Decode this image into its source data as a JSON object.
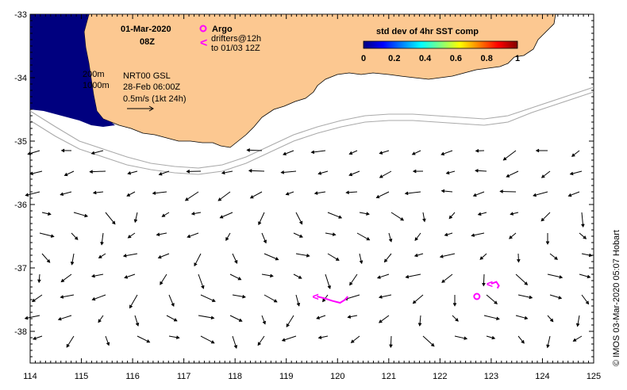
{
  "header": {
    "date": "01-Mar-2020",
    "time": "08Z",
    "argo_label": "Argo",
    "drifters_label": "drifters@12h",
    "drifters_to": "to 01/03 12Z"
  },
  "info": {
    "depth_200": "200m",
    "depth_1000": "1000m",
    "source": "NRT00 GSL",
    "source_time": "28-Feb 06:00Z",
    "scale": "0.5m/s (1kt 24h)"
  },
  "colorbar": {
    "title": "std dev of 4hr SST comp",
    "ticks": [
      "0",
      "0.2",
      "0.4",
      "0.6",
      "0.8",
      "1"
    ],
    "colors": [
      "#00007f",
      "#0000ff",
      "#0080ff",
      "#00ffff",
      "#80ff80",
      "#ffff00",
      "#ff8000",
      "#ff0000",
      "#7f0000"
    ]
  },
  "axes": {
    "x_ticks": [
      "114",
      "115",
      "116",
      "117",
      "118",
      "119",
      "120",
      "121",
      "122",
      "123",
      "124",
      "125"
    ],
    "y_ticks": [
      "-33",
      "-34",
      "-35",
      "-36",
      "-37",
      "-38"
    ],
    "xlim": [
      114,
      125
    ],
    "ylim": [
      -38.5,
      -33
    ]
  },
  "credit": "© IMOS 03-Mar-2020 05:07 Hobart",
  "colors": {
    "land": "#fcc891",
    "sst_high": "#00007f",
    "argo": "#ff00ff",
    "drifter": "#ff00ff",
    "isobath": "#aaaaaa"
  },
  "argo_floats": [
    {
      "lon": 122.72,
      "lat": -37.45
    }
  ],
  "drifter_tracks": [
    [
      [
        119.6,
        -37.45
      ],
      [
        119.75,
        -37.48
      ],
      [
        119.9,
        -37.52
      ],
      [
        120.05,
        -37.55
      ],
      [
        120.15,
        -37.5
      ],
      [
        120.2,
        -37.45
      ]
    ],
    [
      [
        123.0,
        -37.25
      ],
      [
        123.1,
        -37.22
      ],
      [
        123.15,
        -37.28
      ],
      [
        123.12,
        -37.32
      ]
    ]
  ]
}
